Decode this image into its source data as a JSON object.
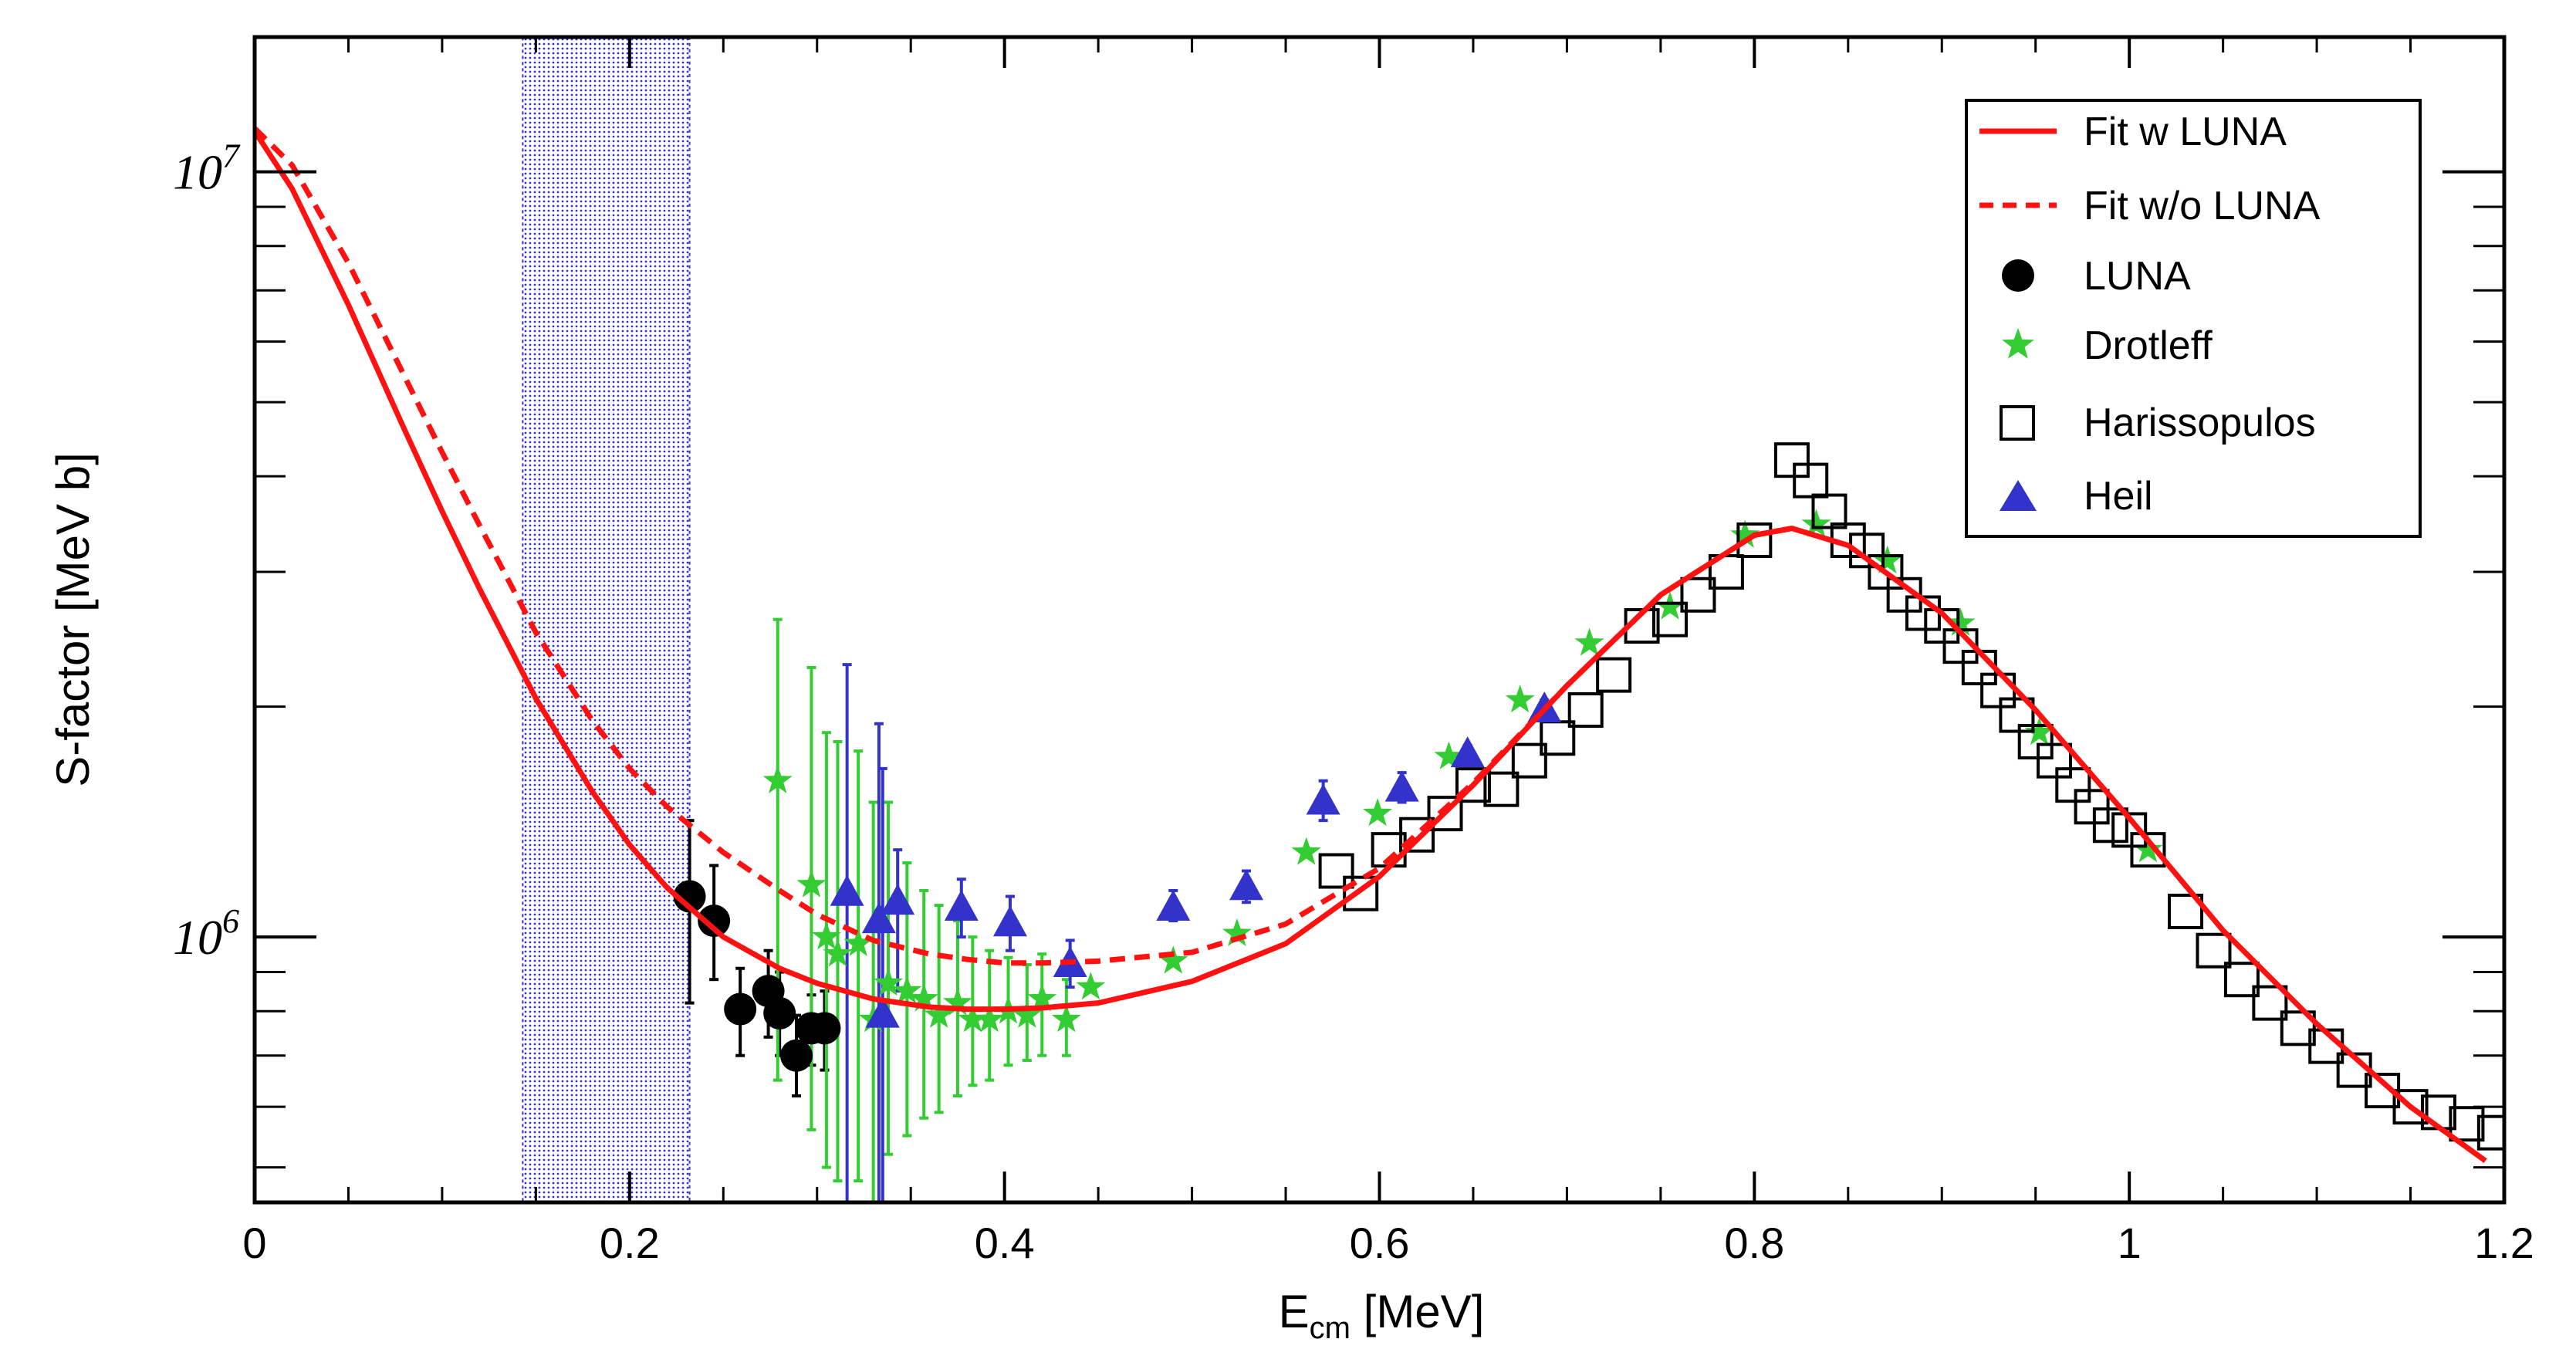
{
  "chart_data": {
    "type": "scatter",
    "title": "",
    "xlabel": "E_cm [MeV]",
    "xlabel_main": "E",
    "xlabel_sub": "cm",
    "xlabel_unit": " [MeV]",
    "ylabel": "S-factor [MeV b]",
    "xlim": [
      0,
      1.2
    ],
    "ylim": [
      450000,
      15000000
    ],
    "yscale": "log",
    "x_ticks": [
      0,
      0.2,
      0.4,
      0.6,
      0.8,
      1,
      1.2
    ],
    "x_tick_labels": [
      "0",
      "0.2",
      "0.4",
      "0.6",
      "0.8",
      "1",
      "1.2"
    ],
    "y_ticks": [
      1000000,
      10000000
    ],
    "y_tick_base": "10",
    "y_tick_exponents": [
      "6",
      "7"
    ],
    "shaded_region": {
      "x_from": 0.143,
      "x_to": 0.232,
      "color": "#3333cc"
    },
    "legend_position": "top-right",
    "series": [
      {
        "name": "Fit w LUNA",
        "kind": "line",
        "style": "solid",
        "color": "#ff1111",
        "x": [
          0.0,
          0.02,
          0.05,
          0.08,
          0.1,
          0.12,
          0.15,
          0.18,
          0.2,
          0.22,
          0.25,
          0.28,
          0.3,
          0.33,
          0.36,
          0.38,
          0.4,
          0.42,
          0.45,
          0.5,
          0.55,
          0.6,
          0.65,
          0.7,
          0.75,
          0.8,
          0.82,
          0.85,
          0.9,
          0.95,
          1.0,
          1.05,
          1.1,
          1.15,
          1.19
        ],
        "y": [
          11300000,
          9500000,
          6700000,
          4600000,
          3600000,
          2850000,
          2050000,
          1550000,
          1320000,
          1160000,
          1000000,
          910000,
          870000,
          830000,
          810000,
          805000,
          805000,
          808000,
          820000,
          875000,
          980000,
          1200000,
          1580000,
          2130000,
          2800000,
          3350000,
          3420000,
          3250000,
          2650000,
          1980000,
          1430000,
          1020000,
          770000,
          600000,
          510000
        ]
      },
      {
        "name": "Fit w/o LUNA",
        "kind": "line",
        "style": "dashed",
        "color": "#ff1111",
        "x": [
          0.0,
          0.02,
          0.05,
          0.08,
          0.1,
          0.12,
          0.15,
          0.18,
          0.2,
          0.22,
          0.25,
          0.28,
          0.3,
          0.33,
          0.36,
          0.38,
          0.4,
          0.42,
          0.45,
          0.5,
          0.55,
          0.6,
          0.65,
          0.7,
          0.75,
          0.8,
          0.82
        ],
        "y": [
          11400000,
          10200000,
          7600000,
          5400000,
          4300000,
          3450000,
          2500000,
          1920000,
          1660000,
          1480000,
          1290000,
          1150000,
          1070000,
          990000,
          950000,
          935000,
          925000,
          925000,
          930000,
          955000,
          1040000,
          1230000,
          1590000,
          2130000,
          2800000,
          3350000,
          3420000
        ]
      },
      {
        "name": "LUNA",
        "kind": "points",
        "marker": "circle",
        "color": "#000000",
        "x": [
          0.232,
          0.245,
          0.259,
          0.274,
          0.28,
          0.289,
          0.297,
          0.304
        ],
        "y": [
          1130000,
          1050000,
          805000,
          850000,
          795000,
          700000,
          760000,
          760000
        ],
        "yerr_low": [
          820000,
          880000,
          700000,
          740000,
          700000,
          620000,
          680000,
          670000
        ],
        "yerr_high": [
          1420000,
          1240000,
          910000,
          960000,
          900000,
          790000,
          840000,
          850000
        ]
      },
      {
        "name": "Drotleff",
        "kind": "points",
        "marker": "star",
        "color": "#33cc33",
        "x": [
          0.279,
          0.297,
          0.305,
          0.311,
          0.322,
          0.33,
          0.338,
          0.348,
          0.357,
          0.365,
          0.375,
          0.383,
          0.392,
          0.402,
          0.412,
          0.42,
          0.433,
          0.446,
          0.49,
          0.524,
          0.561,
          0.599,
          0.637,
          0.675,
          0.712,
          0.755,
          0.795,
          0.833,
          0.871,
          0.91,
          0.952,
          1.01
        ],
        "y": [
          1600000,
          1170000,
          1000000,
          950000,
          980000,
          780000,
          870000,
          850000,
          830000,
          790000,
          820000,
          780000,
          780000,
          800000,
          790000,
          830000,
          780000,
          860000,
          930000,
          1010000,
          1290000,
          1450000,
          1720000,
          2040000,
          2420000,
          2700000,
          3350000,
          3460000,
          3100000,
          2570000,
          1850000,
          1300000
        ],
        "yerr_low": [
          650000,
          560000,
          500000,
          480000,
          480000,
          450000,
          520000,
          550000,
          580000,
          590000,
          620000,
          640000,
          650000,
          680000,
          690000,
          700000,
          700000
        ],
        "yerr_high": [
          2600000,
          2250000,
          1850000,
          1800000,
          1750000,
          1500000,
          1500000,
          1250000,
          1150000,
          1100000,
          1050000,
          1000000,
          960000,
          940000,
          920000,
          950000,
          880000
        ]
      },
      {
        "name": "Harissopulos",
        "kind": "points",
        "marker": "square",
        "color": "#000000",
        "x": [
          0.577,
          0.59,
          0.605,
          0.62,
          0.635,
          0.65,
          0.665,
          0.68,
          0.695,
          0.71,
          0.725,
          0.74,
          0.755,
          0.77,
          0.785,
          0.8,
          0.82,
          0.83,
          0.84,
          0.85,
          0.86,
          0.87,
          0.88,
          0.89,
          0.9,
          0.91,
          0.92,
          0.93,
          0.94,
          0.95,
          0.96,
          0.97,
          0.98,
          0.99,
          1.0,
          1.01,
          1.03,
          1.045,
          1.06,
          1.075,
          1.09,
          1.105,
          1.12,
          1.135,
          1.15,
          1.165,
          1.18,
          1.195
        ],
        "y": [
          1220000,
          1140000,
          1300000,
          1360000,
          1450000,
          1580000,
          1560000,
          1700000,
          1820000,
          1980000,
          2200000,
          2550000,
          2600000,
          2800000,
          3000000,
          3300000,
          4200000,
          3950000,
          3600000,
          3300000,
          3200000,
          3000000,
          2800000,
          2650000,
          2550000,
          2400000,
          2250000,
          2100000,
          1950000,
          1800000,
          1700000,
          1580000,
          1480000,
          1400000,
          1380000,
          1300000,
          1080000,
          960000,
          880000,
          820000,
          760000,
          720000,
          670000,
          630000,
          600000,
          590000,
          570000,
          555000
        ]
      },
      {
        "name": "Heil",
        "kind": "points",
        "marker": "triangle",
        "color": "#3333cc",
        "x": [
          0.316,
          0.333,
          0.343,
          0.335,
          0.377,
          0.403,
          0.435,
          0.49,
          0.529,
          0.57,
          0.612,
          0.647,
          0.688
        ],
        "y": [
          1140000,
          1050000,
          1110000,
          790000,
          1090000,
          1040000,
          920000,
          1090000,
          1160000,
          1500000,
          1560000,
          1730000,
          1980000
        ],
        "yerr_low": [
          300000,
          420000,
          850000,
          300000,
          1000000,
          960000,
          860000,
          1050000,
          1110000,
          1420000,
          1500000,
          1680000,
          1920000
        ],
        "yerr_high": [
          2270000,
          1900000,
          1300000,
          1660000,
          1190000,
          1130000,
          990000,
          1150000,
          1220000,
          1600000,
          1640000,
          1780000,
          2040000
        ]
      }
    ]
  }
}
